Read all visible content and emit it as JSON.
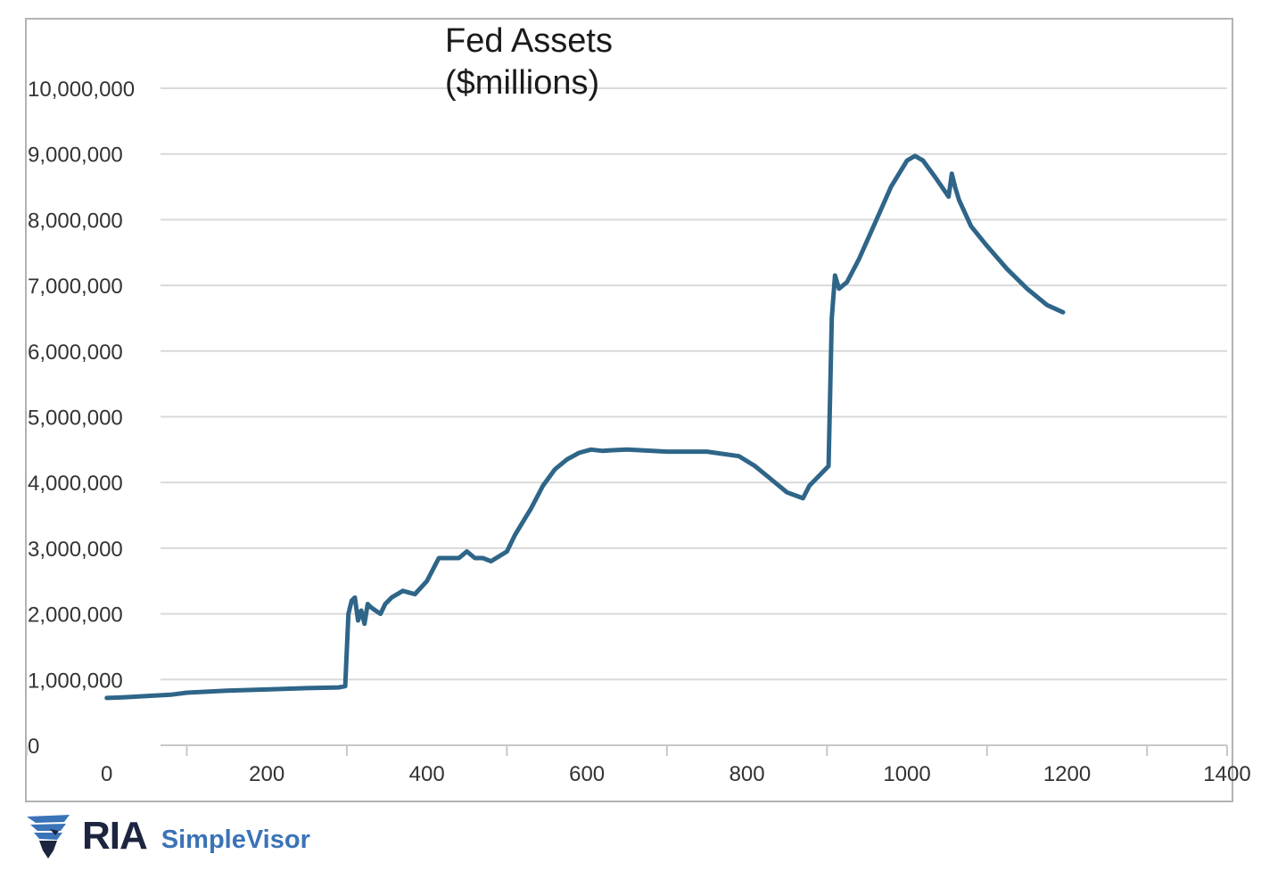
{
  "chart_data": {
    "type": "line",
    "title_line1": "Fed Assets",
    "title_line2": "($millions)",
    "xlabel": "",
    "ylabel": "",
    "xlim": [
      -100,
      1400
    ],
    "ylim": [
      0,
      10000000
    ],
    "x_ticks": [
      0,
      200,
      400,
      600,
      800,
      1000,
      1200,
      1400
    ],
    "x_tick_labels": [
      "0",
      "200",
      "400",
      "600",
      "800",
      "1000",
      "1200",
      "1400"
    ],
    "y_ticks": [
      0,
      1000000,
      2000000,
      3000000,
      4000000,
      5000000,
      6000000,
      7000000,
      8000000,
      9000000,
      10000000
    ],
    "y_tick_labels": [
      "0",
      "1,000,000",
      "2,000,000",
      "3,000,000",
      "4,000,000",
      "5,000,000",
      "6,000,000",
      "7,000,000",
      "8,000,000",
      "9,000,000",
      "10,000,000"
    ],
    "grid": "horizontal",
    "line_color": "#2e6588",
    "series": [
      {
        "x": [
          0,
          20,
          50,
          80,
          100,
          150,
          200,
          250,
          290,
          298,
          302,
          306,
          310,
          314,
          318,
          322,
          326,
          330,
          336,
          342,
          348,
          356,
          370,
          385,
          400,
          415,
          430,
          440,
          450,
          460,
          470,
          480,
          500,
          510,
          520,
          530,
          545,
          560,
          575,
          590,
          605,
          620,
          630,
          650,
          700,
          750,
          790,
          810,
          830,
          850,
          870,
          878,
          890,
          898,
          902,
          906,
          910,
          915,
          925,
          940,
          960,
          980,
          1000,
          1010,
          1020,
          1035,
          1052,
          1056,
          1060,
          1065,
          1080,
          1100,
          1125,
          1150,
          1175,
          1195
        ],
        "y": [
          720000,
          730000,
          750000,
          770000,
          800000,
          830000,
          850000,
          870000,
          880000,
          900000,
          2000000,
          2200000,
          2250000,
          1900000,
          2050000,
          1850000,
          2150000,
          2100000,
          2050000,
          2000000,
          2150000,
          2250000,
          2350000,
          2300000,
          2500000,
          2850000,
          2850000,
          2850000,
          2950000,
          2850000,
          2850000,
          2800000,
          2950000,
          3200000,
          3400000,
          3600000,
          3950000,
          4200000,
          4350000,
          4450000,
          4500000,
          4480000,
          4490000,
          4500000,
          4470000,
          4470000,
          4400000,
          4250000,
          4050000,
          3850000,
          3760000,
          3950000,
          4100000,
          4200000,
          4250000,
          6500000,
          7150000,
          6950000,
          7050000,
          7400000,
          7950000,
          8500000,
          8900000,
          8970000,
          8900000,
          8650000,
          8350000,
          8700000,
          8500000,
          8300000,
          7900000,
          7600000,
          7250000,
          6950000,
          6700000,
          6590000
        ]
      }
    ]
  },
  "brand": {
    "name": "RIA",
    "product": "SimpleVisor",
    "logo_icon": "eagle-shield-icon",
    "colors": {
      "name": "#1c2440",
      "product": "#3a73b7"
    }
  }
}
